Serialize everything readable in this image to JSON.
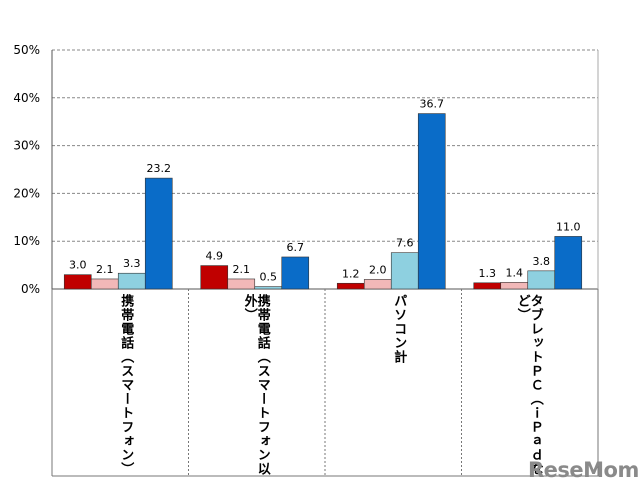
{
  "chart_data": {
    "type": "bar",
    "title": "",
    "xlabel": "",
    "ylabel": "",
    "ylim": [
      0,
      50
    ],
    "y_ticks": [
      "0%",
      "10%",
      "20%",
      "30%",
      "40%",
      "50%"
    ],
    "categories": [
      "携帯電話（スマートフォン）",
      "携帯電話（スマートフォン以外）",
      "パソコン計",
      "タブレットＰＣ（ｉＰａｄなど）"
    ],
    "series": [
      {
        "values": [
          3.0,
          4.9,
          1.2,
          1.3
        ],
        "labels": [
          "3.0",
          "4.9",
          "1.2",
          "1.3"
        ],
        "color": "#c00000"
      },
      {
        "values": [
          2.1,
          2.1,
          2.0,
          1.4
        ],
        "labels": [
          "2.1",
          "2.1",
          "2.0",
          "1.4"
        ],
        "color": "#f2b8b8"
      },
      {
        "values": [
          3.3,
          0.5,
          7.6,
          3.8
        ],
        "labels": [
          "3.3",
          "0.5",
          "7.6",
          "3.8"
        ],
        "color": "#8ed0e0"
      },
      {
        "values": [
          23.2,
          6.7,
          36.7,
          11.0
        ],
        "labels": [
          "23.2",
          "6.7",
          "36.7",
          "11.0"
        ],
        "color": "#0a6cc8"
      }
    ],
    "grid": "dashed horizontal",
    "legend": "none"
  },
  "watermark": "ReseMom"
}
